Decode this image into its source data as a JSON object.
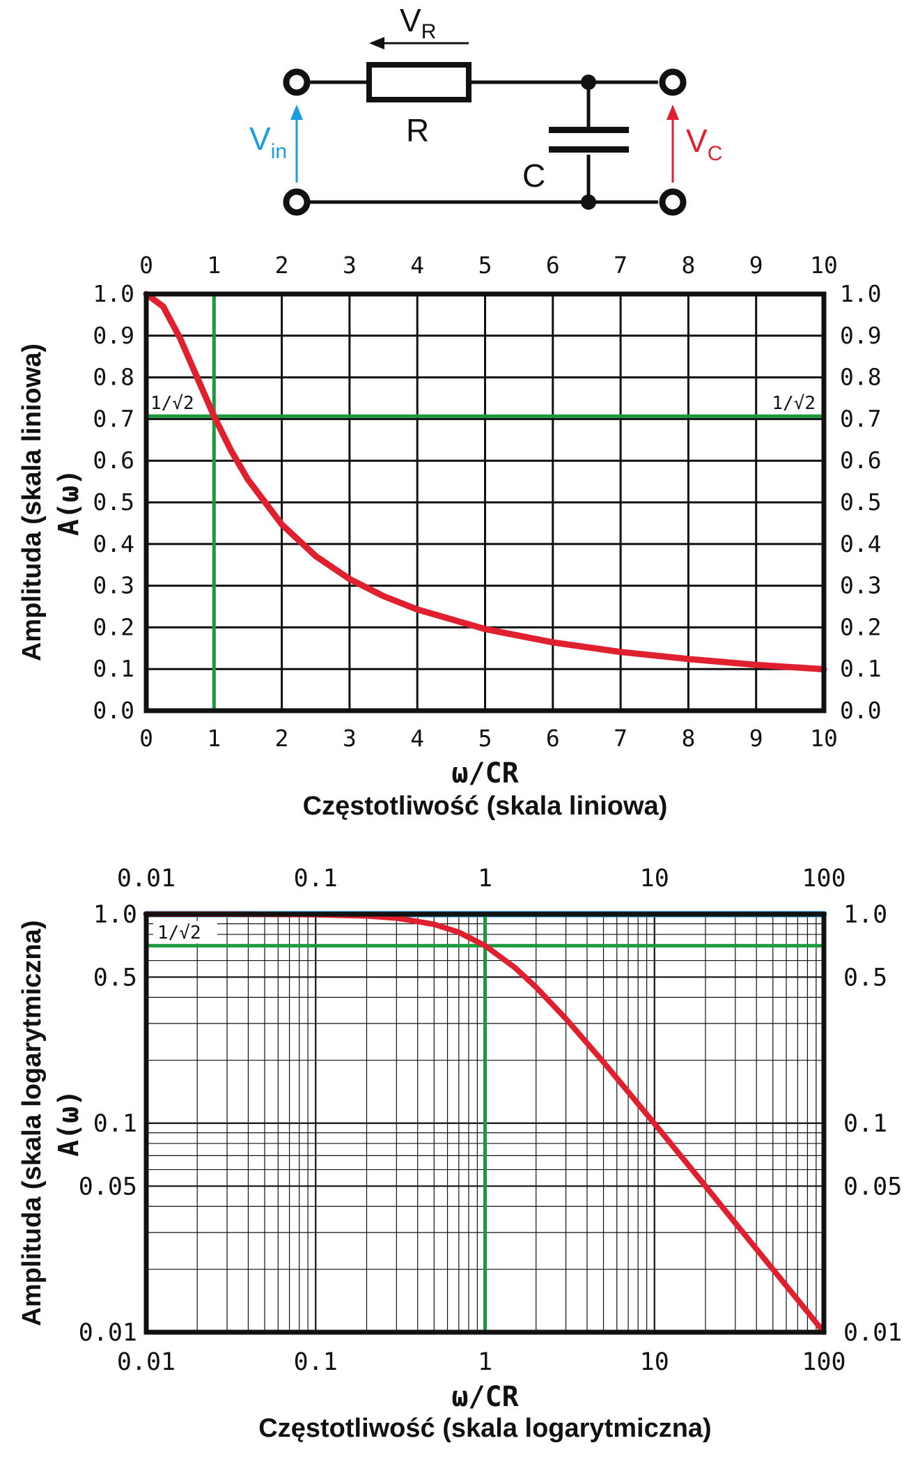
{
  "circuit": {
    "vr_label": "V",
    "vr_sub": "R",
    "r_label": "R",
    "c_label": "C",
    "vin_label": "V",
    "vin_sub": "in",
    "vc_label": "V",
    "vc_sub": "C",
    "colors": {
      "vin": "#1a9ee0",
      "vc": "#e0202e",
      "wire": "#111111"
    }
  },
  "chart_data": [
    {
      "type": "line",
      "xscale": "linear",
      "yscale": "linear",
      "xlim": [
        0,
        10
      ],
      "ylim": [
        0,
        1.0
      ],
      "x_ticks_top": [
        "0",
        "1",
        "2",
        "3",
        "4",
        "5",
        "6",
        "7",
        "8",
        "9",
        "10"
      ],
      "x_ticks_bottom": [
        "0",
        "1",
        "2",
        "3",
        "4",
        "5",
        "6",
        "7",
        "8",
        "9",
        "10"
      ],
      "x_tick_values": [
        0,
        1,
        2,
        3,
        4,
        5,
        6,
        7,
        8,
        9,
        10
      ],
      "y_ticks": [
        "0.0",
        "0.1",
        "0.2",
        "0.3",
        "0.4",
        "0.5",
        "0.6",
        "0.7",
        "0.8",
        "0.9",
        "1.0"
      ],
      "y_tick_values": [
        0,
        0.1,
        0.2,
        0.3,
        0.4,
        0.5,
        0.6,
        0.7,
        0.8,
        0.9,
        1.0
      ],
      "xlabel_1": "ω/CR",
      "xlabel_2": "Częstotliwość (skala liniowa)",
      "ylabel_1": "Amplituda (skala liniowa)",
      "ylabel_2": "A(ω)",
      "annotation": "1/√2",
      "grid": true,
      "series": [
        {
          "color": "#e0202e",
          "x": [
            0,
            0.25,
            0.5,
            0.75,
            1,
            1.25,
            1.5,
            2,
            2.5,
            3,
            3.5,
            4,
            5,
            6,
            7,
            8,
            9,
            10
          ],
          "y": [
            1.0,
            0.97,
            0.894,
            0.8,
            0.707,
            0.625,
            0.555,
            0.447,
            0.371,
            0.316,
            0.275,
            0.243,
            0.196,
            0.164,
            0.141,
            0.124,
            0.11,
            0.0995
          ]
        },
        {
          "color": "#1a9ee0",
          "x": [
            0,
            10
          ],
          "y": [
            1.0,
            1.0
          ]
        },
        {
          "color": "#1a9a3c",
          "x": [
            0,
            10
          ],
          "y": [
            0.707,
            0.707
          ]
        },
        {
          "color": "#1a9a3c",
          "x": [
            1,
            1
          ],
          "y": [
            0,
            1.0
          ]
        }
      ]
    },
    {
      "type": "line",
      "xscale": "log",
      "yscale": "log",
      "xlim": [
        0.01,
        100
      ],
      "ylim": [
        0.01,
        1.0
      ],
      "x_ticks_top": [
        "0.01",
        "0.1",
        "1",
        "10",
        "100"
      ],
      "x_ticks_bottom": [
        "0.01",
        "0.1",
        "1",
        "10",
        "100"
      ],
      "x_tick_values": [
        0.01,
        0.1,
        1,
        10,
        100
      ],
      "y_ticks": [
        "0.01",
        "0.05",
        "0.1",
        "0.5",
        "1.0"
      ],
      "y_tick_values": [
        0.01,
        0.05,
        0.1,
        0.5,
        1.0
      ],
      "xlabel_1": "ω/CR",
      "xlabel_2": "Częstotliwość (skala logarytmiczna)",
      "ylabel_1": "Amplituda (skala logarytmiczna)",
      "ylabel_2": "A(ω)",
      "annotation": "1/√2",
      "grid": true,
      "series": [
        {
          "color": "#e0202e",
          "x": [
            0.01,
            0.03,
            0.1,
            0.2,
            0.3,
            0.5,
            0.7,
            1,
            1.5,
            2,
            3,
            5,
            7,
            10,
            20,
            30,
            50,
            70,
            100
          ],
          "y": [
            1.0,
            1.0,
            0.995,
            0.981,
            0.958,
            0.894,
            0.819,
            0.707,
            0.555,
            0.447,
            0.316,
            0.196,
            0.141,
            0.0995,
            0.05,
            0.0333,
            0.02,
            0.0143,
            0.01
          ]
        },
        {
          "color": "#1a9ee0",
          "x": [
            0.01,
            100
          ],
          "y": [
            1.0,
            1.0
          ]
        },
        {
          "color": "#1a9a3c",
          "x": [
            0.01,
            100
          ],
          "y": [
            0.707,
            0.707
          ]
        },
        {
          "color": "#1a9a3c",
          "x": [
            1,
            1
          ],
          "y": [
            0.01,
            1.0
          ]
        }
      ]
    }
  ]
}
